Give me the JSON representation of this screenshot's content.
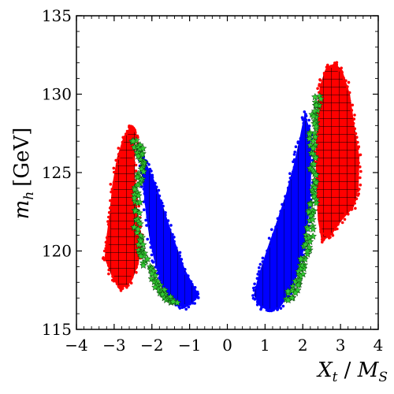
{
  "chart_data": {
    "type": "scatter",
    "title": "",
    "xlabel": {
      "main": "X",
      "sub1": "t",
      "sep": " / ",
      "main2": "M",
      "sub2": "S"
    },
    "ylabel": {
      "main": "m",
      "sub": "h",
      "unit": "[GeV]"
    },
    "xlim": [
      -4,
      4
    ],
    "ylim": [
      115,
      135
    ],
    "xticks": [
      -4,
      -3,
      -2,
      -1,
      0,
      1,
      2,
      3,
      4
    ],
    "yticks": [
      115,
      120,
      125,
      130,
      135
    ],
    "xtick_labels": [
      "−4",
      "−3",
      "−2",
      "−1",
      "0",
      "1",
      "2",
      "3",
      "4"
    ],
    "ytick_labels": [
      "115",
      "120",
      "125",
      "130",
      "135"
    ],
    "grid": false,
    "legend": "none",
    "series": [
      {
        "color": "#ff0000",
        "hatch": "grid",
        "marker": "dot",
        "regions": [
          [
            [
              -2.55,
              128.0
            ],
            [
              -2.75,
              127.3
            ],
            [
              -2.92,
              126.0
            ],
            [
              -3.05,
              124.2
            ],
            [
              -3.12,
              122.4
            ],
            [
              -3.22,
              120.6
            ],
            [
              -3.25,
              119.5
            ],
            [
              -3.05,
              118.3
            ],
            [
              -2.85,
              117.5
            ],
            [
              -2.55,
              118.0
            ],
            [
              -2.35,
              119.2
            ],
            [
              -2.28,
              120.8
            ],
            [
              -2.38,
              122.5
            ],
            [
              -2.45,
              124.5
            ],
            [
              -2.45,
              126.5
            ],
            [
              -2.4,
              127.6
            ]
          ],
          [
            [
              2.85,
              132.0
            ],
            [
              3.05,
              131.5
            ],
            [
              3.25,
              130.0
            ],
            [
              3.38,
              127.8
            ],
            [
              3.5,
              126.0
            ],
            [
              3.48,
              124.0
            ],
            [
              3.35,
              122.8
            ],
            [
              3.05,
              122.0
            ],
            [
              2.75,
              121.0
            ],
            [
              2.5,
              120.6
            ],
            [
              2.4,
              122.0
            ],
            [
              2.35,
              124.5
            ],
            [
              2.35,
              127.0
            ],
            [
              2.38,
              128.8
            ],
            [
              2.45,
              130.5
            ],
            [
              2.6,
              131.6
            ]
          ]
        ]
      },
      {
        "color": "#0000ff",
        "hatch": "vertical",
        "marker": "dot",
        "regions": [
          [
            [
              -2.3,
              126.2
            ],
            [
              -2.15,
              125.6
            ],
            [
              -1.92,
              124.4
            ],
            [
              -1.7,
              122.8
            ],
            [
              -1.42,
              120.8
            ],
            [
              -1.12,
              118.8
            ],
            [
              -0.8,
              117.4
            ],
            [
              -0.82,
              116.9
            ],
            [
              -1.1,
              116.4
            ],
            [
              -1.35,
              116.5
            ],
            [
              -1.55,
              117.0
            ],
            [
              -1.72,
              117.8
            ],
            [
              -1.9,
              119.0
            ],
            [
              -2.05,
              120.6
            ],
            [
              -2.15,
              122.2
            ],
            [
              -2.22,
              123.8
            ],
            [
              -2.28,
              125.2
            ]
          ],
          [
            [
              2.05,
              128.8
            ],
            [
              1.9,
              127.0
            ],
            [
              1.75,
              125.4
            ],
            [
              1.55,
              123.6
            ],
            [
              1.3,
              121.8
            ],
            [
              1.05,
              120.1
            ],
            [
              0.82,
              118.4
            ],
            [
              0.7,
              117.2
            ],
            [
              0.85,
              116.5
            ],
            [
              1.15,
              116.1
            ],
            [
              1.4,
              116.4
            ],
            [
              1.65,
              117.3
            ],
            [
              1.85,
              118.4
            ],
            [
              2.0,
              119.8
            ],
            [
              2.12,
              121.5
            ],
            [
              2.2,
              123.0
            ],
            [
              2.22,
              124.8
            ],
            [
              2.22,
              126.5
            ],
            [
              2.18,
              127.8
            ]
          ]
        ]
      },
      {
        "color": "#33cc33",
        "hatch": "none",
        "marker": "star",
        "curves": [
          [
            [
              -2.48,
              127.0
            ],
            [
              -2.32,
              126.4
            ],
            [
              -2.26,
              125.6
            ],
            [
              -2.34,
              124.4
            ],
            [
              -2.4,
              123.0
            ],
            [
              -2.38,
              121.5
            ],
            [
              -2.3,
              120.2
            ],
            [
              -2.18,
              119.4
            ],
            [
              -2.0,
              118.4
            ],
            [
              -1.78,
              117.5
            ],
            [
              -1.55,
              117.0
            ],
            [
              -1.38,
              116.6
            ]
          ],
          [
            [
              2.4,
              129.8
            ],
            [
              2.33,
              128.8
            ],
            [
              2.27,
              127.6
            ],
            [
              2.26,
              126.2
            ],
            [
              2.28,
              124.8
            ],
            [
              2.28,
              123.4
            ],
            [
              2.24,
              122.2
            ],
            [
              2.16,
              120.8
            ],
            [
              2.06,
              119.6
            ],
            [
              1.95,
              118.6
            ],
            [
              1.78,
              117.6
            ],
            [
              1.55,
              116.8
            ]
          ]
        ]
      }
    ]
  }
}
